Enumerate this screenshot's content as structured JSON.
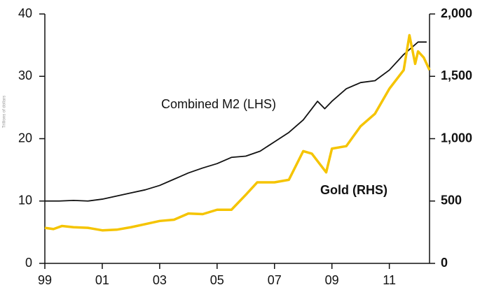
{
  "chart_data": {
    "type": "line",
    "y_label": "Trillions of dollars",
    "xlim": [
      1999,
      2012.4
    ],
    "xticks": [
      {
        "value": 1999,
        "label": "99"
      },
      {
        "value": 2001,
        "label": "01"
      },
      {
        "value": 2003,
        "label": "03"
      },
      {
        "value": 2005,
        "label": "05"
      },
      {
        "value": 2007,
        "label": "07"
      },
      {
        "value": 2009,
        "label": "09"
      },
      {
        "value": 2011,
        "label": "11"
      }
    ],
    "ylim": [
      0,
      40
    ],
    "yticks": [
      0,
      10,
      20,
      30,
      40
    ],
    "y2lim": [
      0,
      2000
    ],
    "y2ticks": [
      0,
      500,
      {
        "value": 1000,
        "label": "1,000"
      },
      {
        "value": 1500,
        "label": "1,500"
      },
      {
        "value": 2000,
        "label": "2,000"
      }
    ],
    "series": [
      {
        "name": "Combined M2 (LHS)",
        "color": "#111111",
        "x": [
          1999,
          1999.5,
          2000,
          2000.5,
          2001,
          2001.5,
          2002,
          2002.5,
          2003,
          2003.5,
          2004,
          2004.5,
          2005,
          2005.5,
          2006,
          2006.5,
          2007,
          2007.5,
          2008,
          2008.5,
          2008.75,
          2009,
          2009.5,
          2010,
          2010.5,
          2011,
          2011.5,
          2012,
          2012.3
        ],
        "values": [
          10,
          10,
          10.1,
          10,
          10.3,
          10.8,
          11.3,
          11.8,
          12.5,
          13.5,
          14.5,
          15.3,
          16,
          17,
          17.2,
          18,
          19.5,
          21,
          23,
          26,
          24.8,
          26,
          28,
          29,
          29.3,
          31,
          33.5,
          35.5,
          35.5
        ]
      },
      {
        "name": "Gold (RHS)",
        "color": "#f5c400",
        "axis": "y2",
        "x": [
          1999,
          1999.3,
          1999.6,
          2000,
          2000.5,
          2001,
          2001.5,
          2002,
          2002.5,
          2003,
          2003.5,
          2004,
          2004.5,
          2005,
          2005.5,
          2006,
          2006.4,
          2007,
          2007.5,
          2008,
          2008.3,
          2008.8,
          2009,
          2009.5,
          2010,
          2010.5,
          2011,
          2011.5,
          2011.7,
          2011.9,
          2012,
          2012.2,
          2012.4
        ],
        "values": [
          285,
          275,
          300,
          290,
          285,
          265,
          270,
          290,
          315,
          340,
          350,
          400,
          395,
          430,
          430,
          550,
          650,
          650,
          670,
          900,
          880,
          730,
          920,
          940,
          1100,
          1200,
          1400,
          1550,
          1830,
          1600,
          1700,
          1650,
          1550
        ]
      }
    ]
  }
}
